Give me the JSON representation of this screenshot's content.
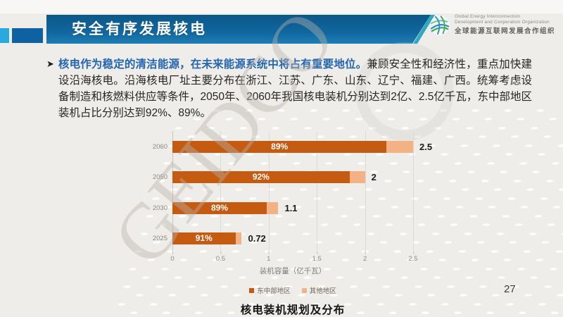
{
  "slide": {
    "header": {
      "title": "安全有序发展核电"
    },
    "logo": {
      "line1": "Global Energy Interconnection",
      "line2": "Development and Cooperation Organization",
      "line3": "全球能源互联网发展合作组织"
    },
    "bullet": {
      "marker": "➤",
      "highlight": "核电作为稳定的清洁能源，在未来能源系统中将占有重要地位。",
      "body": "兼顾安全性和经济性，重点加快建设沿海核电。沿海核电厂址主要分布在浙江、江苏、广东、山东、辽宁、福建、广西。统筹考虑设备制造和核燃料供应等条件，2050年、2060年我国核电装机分别达到2亿、2.5亿千瓦，东中部地区装机占比分别达到92%、89%。"
    },
    "watermark": "GEIDCO",
    "page_number": "27",
    "icons": {
      "logo": "globe-icon",
      "bullet": "arrow-right-icon"
    },
    "colors": {
      "header_blue": "#0e6195",
      "accent_cyan": "#29aadf",
      "accent_teal": "#2fa9bd",
      "highlight_blue": "#2365ae",
      "dark_orange": "#c55a11",
      "light_orange": "#f4b183"
    }
  },
  "chart_data": {
    "type": "bar",
    "orientation": "horizontal",
    "title": "核电装机规划及分布",
    "xlabel": "装机容量（亿千瓦）",
    "categories": [
      "2060",
      "2050",
      "2030",
      "2025"
    ],
    "totals": [
      2.5,
      2,
      1.1,
      0.72
    ],
    "total_labels": [
      "2.5",
      "2",
      "1.1",
      "0.72"
    ],
    "series": [
      {
        "name": "东中部地区",
        "color": "#c55a11",
        "shares": [
          0.89,
          0.92,
          0.89,
          0.91
        ],
        "share_labels": [
          "89%",
          "92%",
          "89%",
          "91%"
        ],
        "values": [
          2.225,
          1.84,
          0.979,
          0.655
        ]
      },
      {
        "name": "其他地区",
        "color": "#f4b183",
        "values": [
          0.275,
          0.16,
          0.121,
          0.065
        ]
      }
    ],
    "xlim": [
      0,
      2.5
    ],
    "x_ticks": [
      "0",
      "0.5",
      "1",
      "1.5",
      "2",
      "2.5"
    ],
    "x_tick_values": [
      0,
      0.5,
      1,
      1.5,
      2,
      2.5
    ],
    "grid": true,
    "legend_position": "bottom"
  }
}
